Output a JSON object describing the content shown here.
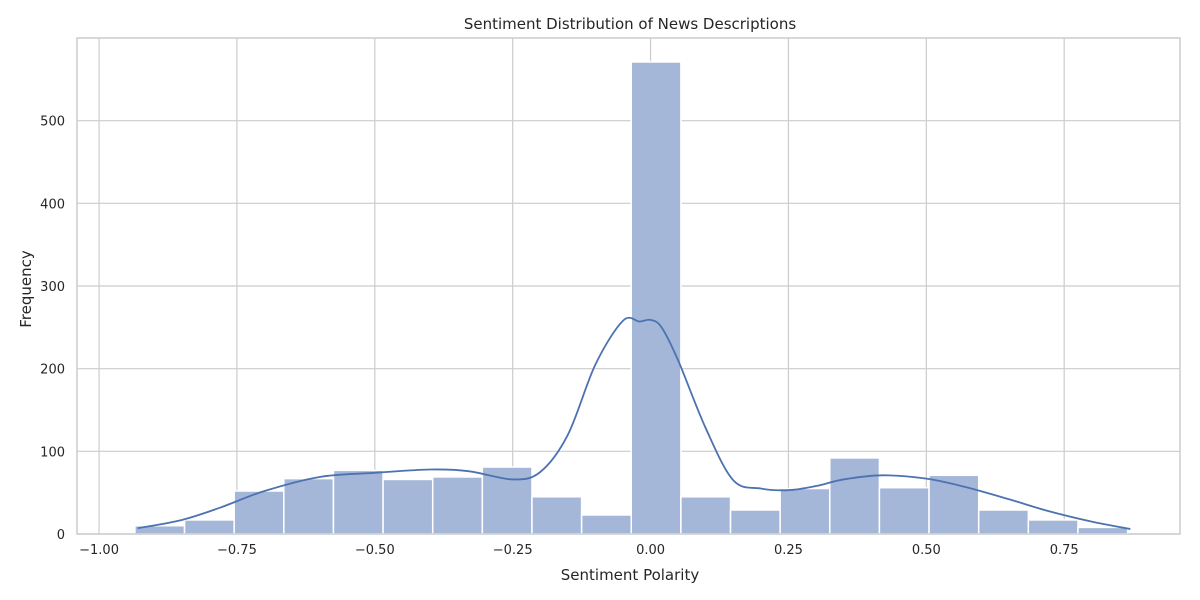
{
  "chart_data": {
    "type": "bar",
    "subtype": "histogram-with-kde",
    "title": "Sentiment Distribution of News Descriptions",
    "xlabel": "Sentiment Polarity",
    "ylabel": "Frequency",
    "xlim": [
      -1.04,
      0.96
    ],
    "ylim": [
      0,
      600
    ],
    "x_ticks": [
      -1.0,
      -0.75,
      -0.5,
      -0.25,
      0.0,
      0.25,
      0.5,
      0.75
    ],
    "x_tick_labels": [
      "−1.00",
      "−0.75",
      "−0.50",
      "−0.25",
      "0.00",
      "0.25",
      "0.50",
      "0.75"
    ],
    "y_ticks": [
      0,
      100,
      200,
      300,
      400,
      500
    ],
    "y_tick_labels": [
      "0",
      "100",
      "200",
      "300",
      "400",
      "500"
    ],
    "grid": true,
    "bin_edges": [
      -0.935,
      -0.845,
      -0.755,
      -0.665,
      -0.575,
      -0.485,
      -0.395,
      -0.305,
      -0.215,
      -0.125,
      -0.035,
      0.055,
      0.145,
      0.235,
      0.325,
      0.415,
      0.505,
      0.595,
      0.685,
      0.775,
      0.865
    ],
    "counts": [
      10,
      17,
      52,
      67,
      77,
      66,
      69,
      81,
      45,
      23,
      571,
      45,
      29,
      55,
      92,
      56,
      71,
      29,
      17,
      8
    ],
    "kde": {
      "x": [
        -0.93,
        -0.85,
        -0.78,
        -0.7,
        -0.6,
        -0.5,
        -0.4,
        -0.33,
        -0.25,
        -0.2,
        -0.15,
        -0.1,
        -0.05,
        -0.02,
        0.0,
        0.02,
        0.05,
        0.1,
        0.15,
        0.2,
        0.25,
        0.3,
        0.35,
        0.42,
        0.5,
        0.57,
        0.65,
        0.72,
        0.8,
        0.87
      ],
      "y": [
        7,
        17,
        32,
        52,
        69,
        74,
        78,
        76,
        66,
        75,
        120,
        205,
        258,
        257,
        259,
        250,
        210,
        128,
        65,
        55,
        53,
        58,
        66,
        71,
        67,
        57,
        42,
        28,
        15,
        6
      ]
    },
    "colors": {
      "bar_fill": "#a4b7d8",
      "bar_edge": "#ffffff",
      "kde_line": "#4c72b0",
      "grid": "#cccccc",
      "spine": "#cccccc",
      "text": "#262626"
    }
  }
}
